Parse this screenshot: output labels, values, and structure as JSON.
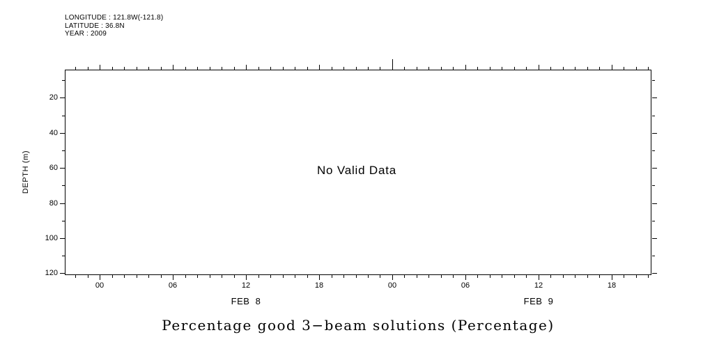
{
  "header": {
    "longitude": "LONGITUDE : 121.8W(-121.8)",
    "latitude": "LATITUDE : 36.8N",
    "year": "YEAR : 2009"
  },
  "chart_data": {
    "type": "heatmap",
    "title": "Percentage good 3−beam solutions (Percentage)",
    "xlabel": "",
    "ylabel": "DEPTH (m)",
    "no_data_message": "No Valid Data",
    "series": [],
    "annotations": [
      "No Valid Data"
    ],
    "grid": false,
    "x_axis": {
      "unit": "hours from FEB 8 00:00, year 2009",
      "range_hours": [
        -2.86,
        45.26
      ],
      "major_ticks": [
        {
          "hour": 0,
          "label": "00"
        },
        {
          "hour": 6,
          "label": "06"
        },
        {
          "hour": 12,
          "label": "12"
        },
        {
          "hour": 18,
          "label": "18"
        },
        {
          "hour": 24,
          "label": "00"
        },
        {
          "hour": 30,
          "label": "06"
        },
        {
          "hour": 36,
          "label": "12"
        },
        {
          "hour": 42,
          "label": "18"
        }
      ],
      "minor_tick_interval_hours": 1,
      "day_boundaries": [
        24
      ],
      "day_labels": [
        {
          "hour": 12,
          "label": "FEB  8"
        },
        {
          "hour": 36,
          "label": "FEB  9"
        }
      ]
    },
    "y_axis": {
      "unit": "m",
      "range_m": [
        4,
        121
      ],
      "major_ticks": [
        20,
        40,
        60,
        80,
        100,
        120
      ],
      "minor_tick_interval_m": 10
    }
  }
}
